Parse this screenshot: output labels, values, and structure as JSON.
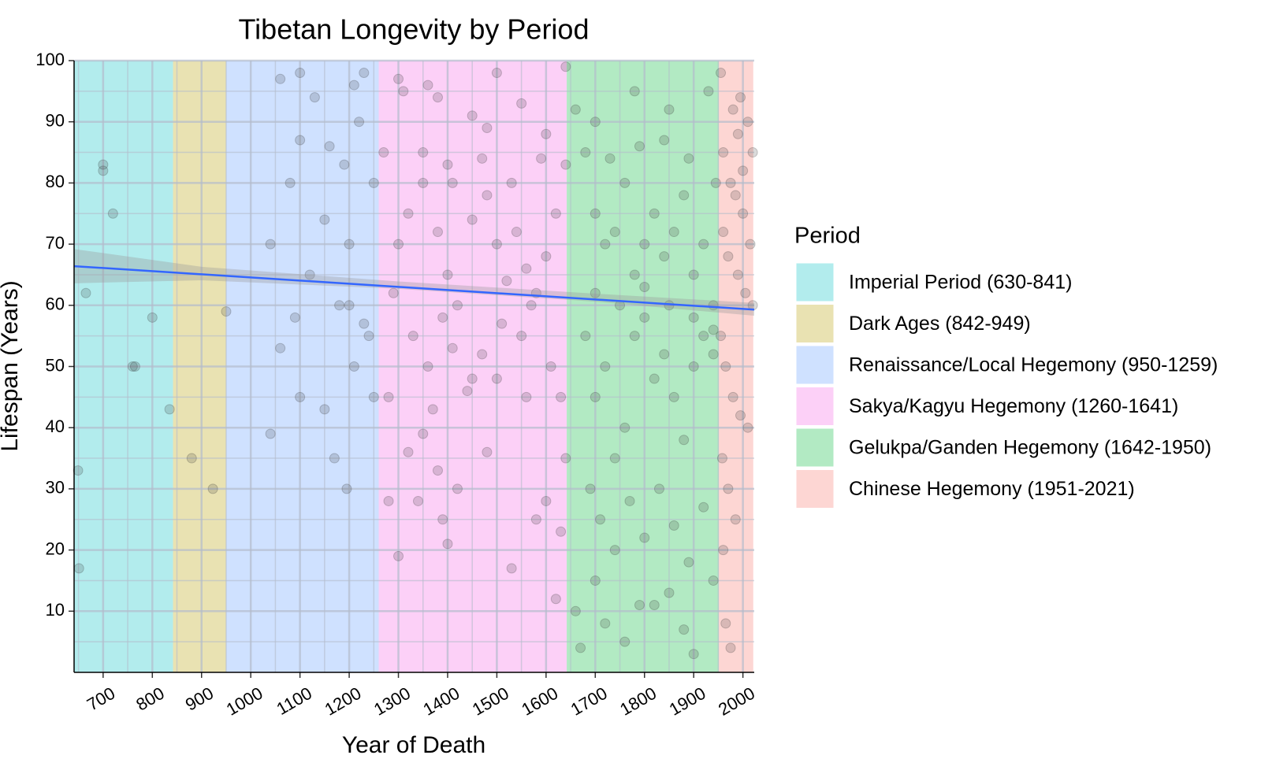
{
  "chart_data": {
    "type": "scatter",
    "title": "Tibetan Longevity by Period",
    "x_label": "Year of Death",
    "y_label": "Lifespan (Years)",
    "xlim": [
      641,
      2023
    ],
    "ylim": [
      0,
      100
    ],
    "xticks": [
      700,
      800,
      900,
      1000,
      1100,
      1200,
      1300,
      1400,
      1500,
      1600,
      1700,
      1800,
      1900,
      2000
    ],
    "yticks": [
      10,
      20,
      30,
      40,
      50,
      60,
      70,
      80,
      90,
      100
    ],
    "xminor": [
      650,
      750,
      850,
      950,
      1050,
      1150,
      1250,
      1350,
      1450,
      1550,
      1650,
      1750,
      1850,
      1950
    ],
    "yminor": [
      5,
      15,
      25,
      35,
      45,
      55,
      65,
      75,
      85,
      95
    ],
    "grid": true,
    "point_color": "#333333",
    "legend_title": "Period",
    "legend_position": "right",
    "periods": [
      {
        "name": "Imperial Period (630-841)",
        "color": "#00BFC4",
        "start": 630,
        "end": 841
      },
      {
        "name": "Dark Ages (842-949)",
        "color": "#B79F00",
        "start": 842,
        "end": 949
      },
      {
        "name": "Renaissance/Local Hegemony (950-1259)",
        "color": "#619CFF",
        "start": 950,
        "end": 1259
      },
      {
        "name": "Sakya/Kagyu Hegemony (1260-1641)",
        "color": "#F564E3",
        "start": 1260,
        "end": 1641
      },
      {
        "name": "Gelukpa/Ganden Hegemony (1642-1950)",
        "color": "#00BA38",
        "start": 1642,
        "end": 1950
      },
      {
        "name": "Chinese Hegemony (1951-2021)",
        "color": "#F8766D",
        "start": 1951,
        "end": 2021
      }
    ],
    "trend": {
      "color": "#3366FF",
      "x": [
        641,
        2023
      ],
      "y": [
        66.4,
        59.3
      ]
    },
    "ci": {
      "x": [
        641,
        900,
        1300,
        1700,
        2023
      ],
      "lower": [
        63.6,
        64.1,
        62.7,
        60.6,
        58.3
      ],
      "upper": [
        69.2,
        66.3,
        63.9,
        61.9,
        60.4
      ]
    },
    "x": [
      649,
      651,
      665,
      700,
      700,
      720,
      760,
      765,
      800,
      835,
      880,
      923,
      950,
      1060,
      1100,
      1130,
      1190,
      1210,
      1230,
      1040,
      1080,
      1150,
      1200,
      1180,
      1100,
      1150,
      1170,
      1195,
      1040,
      1060,
      1210,
      1240,
      1250,
      1100,
      1160,
      1220,
      1250,
      1120,
      1090,
      1200,
      1230,
      1300,
      1310,
      1360,
      1380,
      1400,
      1450,
      1480,
      1500,
      1550,
      1600,
      1640,
      1280,
      1300,
      1320,
      1340,
      1350,
      1370,
      1380,
      1390,
      1400,
      1420,
      1450,
      1480,
      1500,
      1530,
      1560,
      1580,
      1600,
      1620,
      1630,
      1640,
      1300,
      1320,
      1350,
      1380,
      1400,
      1420,
      1450,
      1480,
      1500,
      1520,
      1540,
      1560,
      1580,
      1600,
      1620,
      1640,
      1290,
      1330,
      1360,
      1390,
      1410,
      1440,
      1470,
      1510,
      1550,
      1570,
      1610,
      1630,
      1350,
      1410,
      1470,
      1530,
      1590,
      1270,
      1280,
      1660,
      1700,
      1780,
      1850,
      1930,
      1660,
      1670,
      1700,
      1720,
      1760,
      1790,
      1820,
      1850,
      1880,
      1900,
      1940,
      1700,
      1720,
      1740,
      1760,
      1780,
      1800,
      1820,
      1840,
      1860,
      1880,
      1900,
      1920,
      1940,
      1680,
      1700,
      1720,
      1740,
      1760,
      1780,
      1800,
      1820,
      1840,
      1860,
      1880,
      1900,
      1920,
      1940,
      1690,
      1710,
      1740,
      1770,
      1800,
      1830,
      1860,
      1890,
      1920,
      1700,
      1750,
      1800,
      1850,
      1900,
      1940,
      1680,
      1730,
      1790,
      1840,
      1890,
      1945,
      1955,
      1980,
      1995,
      2010,
      1960,
      1975,
      1985,
      2000,
      2015,
      1960,
      1970,
      1990,
      2005,
      2020,
      1955,
      1965,
      1980,
      1995,
      2010,
      1958,
      1970,
      1985,
      1960,
      1965,
      1975,
      2020,
      2000,
      1990
    ],
    "y": [
      33,
      17,
      62,
      83,
      82,
      75,
      50,
      50,
      58,
      43,
      35,
      30,
      59,
      97,
      98,
      94,
      83,
      96,
      98,
      70,
      80,
      74,
      60,
      60,
      45,
      43,
      35,
      30,
      39,
      53,
      50,
      55,
      80,
      87,
      86,
      90,
      45,
      65,
      58,
      70,
      57,
      97,
      95,
      96,
      94,
      83,
      91,
      89,
      98,
      93,
      88,
      99,
      28,
      19,
      36,
      28,
      39,
      43,
      33,
      25,
      21,
      30,
      48,
      36,
      48,
      17,
      45,
      25,
      28,
      12,
      23,
      35,
      70,
      75,
      80,
      72,
      65,
      60,
      74,
      78,
      70,
      64,
      72,
      66,
      62,
      68,
      75,
      83,
      62,
      55,
      50,
      58,
      53,
      46,
      52,
      57,
      55,
      60,
      50,
      45,
      85,
      80,
      84,
      80,
      84,
      85,
      45,
      92,
      90,
      95,
      92,
      95,
      10,
      4,
      15,
      8,
      5,
      11,
      11,
      13,
      7,
      3,
      15,
      75,
      70,
      72,
      80,
      65,
      70,
      75,
      68,
      72,
      78,
      65,
      70,
      60,
      55,
      45,
      50,
      35,
      40,
      55,
      58,
      48,
      52,
      45,
      38,
      50,
      55,
      52,
      30,
      25,
      20,
      28,
      22,
      30,
      24,
      18,
      27,
      62,
      60,
      63,
      60,
      58,
      56,
      85,
      84,
      86,
      87,
      84,
      80,
      98,
      92,
      94,
      90,
      85,
      80,
      78,
      75,
      70,
      72,
      68,
      65,
      62,
      60,
      55,
      50,
      45,
      42,
      40,
      35,
      30,
      25,
      20,
      8,
      4,
      85,
      82,
      88
    ]
  }
}
